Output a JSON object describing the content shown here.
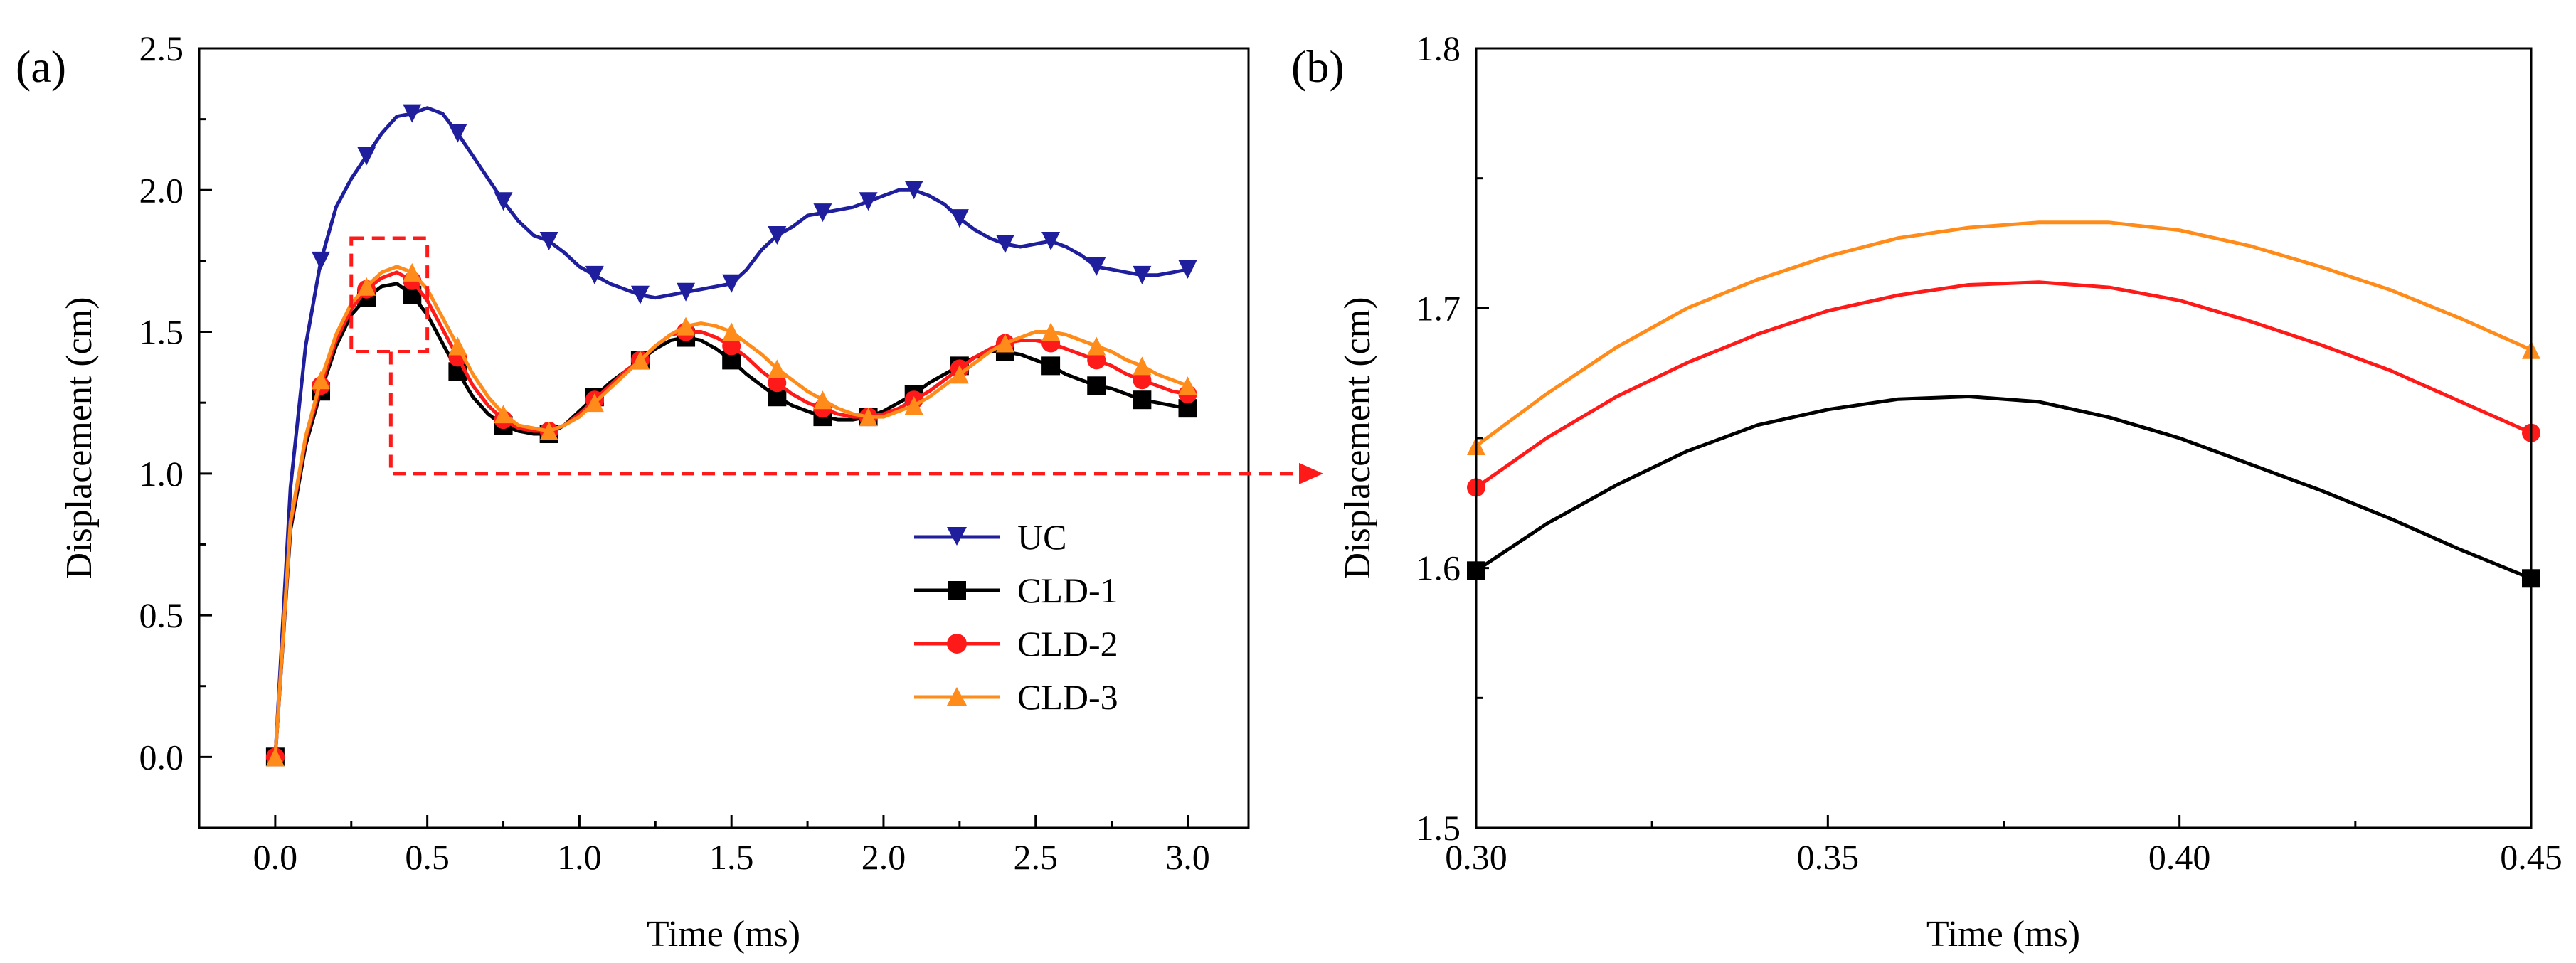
{
  "chart_data": [
    {
      "panel": "(a)",
      "type": "line",
      "title": "",
      "xlabel": "Time (ms)",
      "ylabel": "Displacement (cm)",
      "xlim": [
        -0.25,
        3.2
      ],
      "ylim": [
        -0.25,
        2.5
      ],
      "xticks": [
        0.0,
        0.5,
        1.0,
        1.5,
        2.0,
        2.5,
        3.0
      ],
      "xtick_labels": [
        "0.0",
        "0.5",
        "1.0",
        "1.5",
        "2.0",
        "2.5",
        "3.0"
      ],
      "yticks": [
        0.0,
        0.5,
        1.0,
        1.5,
        2.0,
        2.5
      ],
      "ytick_labels": [
        "0.0",
        "0.5",
        "1.0",
        "1.5",
        "2.0",
        "2.5"
      ],
      "grid": false,
      "legend_position": "bottom-right",
      "series": [
        {
          "name": "UC",
          "color": "#1f1f9e",
          "marker": "triangle-down",
          "x": [
            0.0,
            0.05,
            0.1,
            0.15,
            0.2,
            0.25,
            0.3,
            0.35,
            0.4,
            0.45,
            0.5,
            0.55,
            0.6,
            0.65,
            0.7,
            0.75,
            0.8,
            0.85,
            0.9,
            0.95,
            1.0,
            1.05,
            1.1,
            1.15,
            1.2,
            1.25,
            1.3,
            1.35,
            1.4,
            1.45,
            1.5,
            1.55,
            1.6,
            1.65,
            1.7,
            1.75,
            1.8,
            1.85,
            1.9,
            1.95,
            2.0,
            2.05,
            2.1,
            2.15,
            2.2,
            2.25,
            2.3,
            2.35,
            2.4,
            2.45,
            2.5,
            2.55,
            2.6,
            2.65,
            2.7,
            2.75,
            2.8,
            2.85,
            2.9,
            2.95,
            3.0
          ],
          "y": [
            0.0,
            0.95,
            1.45,
            1.75,
            1.94,
            2.04,
            2.12,
            2.2,
            2.26,
            2.27,
            2.29,
            2.27,
            2.2,
            2.12,
            2.04,
            1.96,
            1.89,
            1.84,
            1.82,
            1.78,
            1.73,
            1.7,
            1.67,
            1.65,
            1.63,
            1.62,
            1.63,
            1.64,
            1.65,
            1.66,
            1.67,
            1.72,
            1.79,
            1.84,
            1.87,
            1.91,
            1.92,
            1.93,
            1.94,
            1.96,
            1.98,
            2.0,
            2.0,
            1.98,
            1.95,
            1.9,
            1.86,
            1.83,
            1.81,
            1.8,
            1.81,
            1.82,
            1.8,
            1.77,
            1.73,
            1.72,
            1.71,
            1.7,
            1.7,
            1.71,
            1.72
          ],
          "marker_x": [
            0.0,
            0.15,
            0.3,
            0.45,
            0.6,
            0.75,
            0.9,
            1.05,
            1.2,
            1.35,
            1.5,
            1.65,
            1.8,
            1.95,
            2.1,
            2.25,
            2.4,
            2.55,
            2.7,
            2.85,
            3.0
          ]
        },
        {
          "name": "CLD-1",
          "color": "#000000",
          "marker": "square",
          "x": [
            0.0,
            0.05,
            0.1,
            0.15,
            0.2,
            0.25,
            0.3,
            0.35,
            0.4,
            0.45,
            0.5,
            0.55,
            0.6,
            0.65,
            0.7,
            0.75,
            0.8,
            0.85,
            0.9,
            0.95,
            1.0,
            1.05,
            1.1,
            1.15,
            1.2,
            1.25,
            1.3,
            1.35,
            1.4,
            1.45,
            1.5,
            1.55,
            1.6,
            1.65,
            1.7,
            1.75,
            1.8,
            1.85,
            1.9,
            1.95,
            2.0,
            2.05,
            2.1,
            2.15,
            2.2,
            2.25,
            2.3,
            2.35,
            2.4,
            2.45,
            2.5,
            2.55,
            2.6,
            2.65,
            2.7,
            2.75,
            2.8,
            2.85,
            2.9,
            2.95,
            3.0
          ],
          "y": [
            0.0,
            0.8,
            1.1,
            1.29,
            1.45,
            1.56,
            1.62,
            1.66,
            1.67,
            1.63,
            1.56,
            1.46,
            1.36,
            1.27,
            1.21,
            1.17,
            1.15,
            1.14,
            1.14,
            1.17,
            1.22,
            1.27,
            1.32,
            1.36,
            1.4,
            1.44,
            1.47,
            1.48,
            1.47,
            1.44,
            1.4,
            1.35,
            1.31,
            1.27,
            1.24,
            1.22,
            1.2,
            1.19,
            1.19,
            1.2,
            1.22,
            1.25,
            1.28,
            1.32,
            1.35,
            1.38,
            1.41,
            1.43,
            1.43,
            1.42,
            1.4,
            1.38,
            1.35,
            1.33,
            1.31,
            1.3,
            1.28,
            1.26,
            1.25,
            1.24,
            1.23
          ],
          "marker_x": [
            0.0,
            0.15,
            0.3,
            0.45,
            0.6,
            0.75,
            0.9,
            1.05,
            1.2,
            1.35,
            1.5,
            1.65,
            1.8,
            1.95,
            2.1,
            2.25,
            2.4,
            2.55,
            2.7,
            2.85,
            3.0
          ]
        },
        {
          "name": "CLD-2",
          "color": "#ff1a1a",
          "marker": "circle",
          "x": [
            0.0,
            0.05,
            0.1,
            0.15,
            0.2,
            0.25,
            0.3,
            0.35,
            0.4,
            0.45,
            0.5,
            0.55,
            0.6,
            0.65,
            0.7,
            0.75,
            0.8,
            0.85,
            0.9,
            0.95,
            1.0,
            1.05,
            1.1,
            1.15,
            1.2,
            1.25,
            1.3,
            1.35,
            1.4,
            1.45,
            1.5,
            1.55,
            1.6,
            1.65,
            1.7,
            1.75,
            1.8,
            1.85,
            1.9,
            1.95,
            2.0,
            2.05,
            2.1,
            2.15,
            2.2,
            2.25,
            2.3,
            2.35,
            2.4,
            2.45,
            2.5,
            2.55,
            2.6,
            2.65,
            2.7,
            2.75,
            2.8,
            2.85,
            2.9,
            2.95,
            3.0
          ],
          "y": [
            0.0,
            0.82,
            1.12,
            1.31,
            1.47,
            1.58,
            1.65,
            1.69,
            1.71,
            1.68,
            1.61,
            1.51,
            1.41,
            1.31,
            1.24,
            1.19,
            1.16,
            1.15,
            1.15,
            1.17,
            1.21,
            1.26,
            1.31,
            1.36,
            1.4,
            1.45,
            1.49,
            1.5,
            1.5,
            1.48,
            1.45,
            1.41,
            1.36,
            1.32,
            1.28,
            1.25,
            1.23,
            1.21,
            1.2,
            1.2,
            1.21,
            1.23,
            1.26,
            1.29,
            1.33,
            1.37,
            1.41,
            1.44,
            1.46,
            1.47,
            1.47,
            1.46,
            1.44,
            1.42,
            1.4,
            1.38,
            1.35,
            1.33,
            1.31,
            1.29,
            1.28
          ],
          "marker_x": [
            0.0,
            0.15,
            0.3,
            0.45,
            0.6,
            0.75,
            0.9,
            1.05,
            1.2,
            1.35,
            1.5,
            1.65,
            1.8,
            1.95,
            2.1,
            2.25,
            2.4,
            2.55,
            2.7,
            2.85,
            3.0
          ]
        },
        {
          "name": "CLD-3",
          "color": "#ff8c1a",
          "marker": "triangle-up",
          "x": [
            0.0,
            0.05,
            0.1,
            0.15,
            0.2,
            0.25,
            0.3,
            0.35,
            0.4,
            0.45,
            0.5,
            0.55,
            0.6,
            0.65,
            0.7,
            0.75,
            0.8,
            0.85,
            0.9,
            0.95,
            1.0,
            1.05,
            1.1,
            1.15,
            1.2,
            1.25,
            1.3,
            1.35,
            1.4,
            1.45,
            1.5,
            1.55,
            1.6,
            1.65,
            1.7,
            1.75,
            1.8,
            1.85,
            1.9,
            1.95,
            2.0,
            2.05,
            2.1,
            2.15,
            2.2,
            2.25,
            2.3,
            2.35,
            2.4,
            2.45,
            2.5,
            2.55,
            2.6,
            2.65,
            2.7,
            2.75,
            2.8,
            2.85,
            2.9,
            2.95,
            3.0
          ],
          "y": [
            0.0,
            0.83,
            1.13,
            1.33,
            1.49,
            1.6,
            1.66,
            1.71,
            1.73,
            1.71,
            1.65,
            1.55,
            1.45,
            1.35,
            1.27,
            1.21,
            1.17,
            1.16,
            1.15,
            1.17,
            1.2,
            1.25,
            1.3,
            1.35,
            1.4,
            1.45,
            1.49,
            1.52,
            1.53,
            1.52,
            1.5,
            1.46,
            1.42,
            1.37,
            1.33,
            1.29,
            1.26,
            1.23,
            1.21,
            1.2,
            1.2,
            1.22,
            1.24,
            1.27,
            1.31,
            1.35,
            1.39,
            1.43,
            1.46,
            1.48,
            1.5,
            1.5,
            1.49,
            1.47,
            1.45,
            1.43,
            1.4,
            1.38,
            1.35,
            1.33,
            1.31
          ],
          "marker_x": [
            0.0,
            0.15,
            0.3,
            0.45,
            0.6,
            0.75,
            0.9,
            1.05,
            1.2,
            1.35,
            1.5,
            1.65,
            1.8,
            1.95,
            2.1,
            2.25,
            2.4,
            2.55,
            2.7,
            2.85,
            3.0
          ]
        }
      ],
      "annotations": [
        {
          "type": "dashed-box",
          "x_range": [
            0.25,
            0.5
          ],
          "y_range": [
            1.43,
            1.83
          ],
          "color": "#ff1a1a"
        },
        {
          "type": "dashed-arrow",
          "from_x": 0.38,
          "from_y": 1.43,
          "via_y": 1.0,
          "to_panel": "(b)",
          "color": "#ff1a1a"
        }
      ]
    },
    {
      "panel": "(b)",
      "type": "line",
      "title": "",
      "xlabel": "Time (ms)",
      "ylabel": "Displacement (cm)",
      "xlim": [
        0.3,
        0.45
      ],
      "ylim": [
        1.5,
        1.8
      ],
      "xticks": [
        0.3,
        0.35,
        0.4,
        0.45
      ],
      "xtick_labels": [
        "0.30",
        "0.35",
        "0.40",
        "0.45"
      ],
      "yticks": [
        1.5,
        1.6,
        1.7,
        1.8
      ],
      "ytick_labels": [
        "1.5",
        "1.6",
        "1.7",
        "1.8"
      ],
      "grid": false,
      "legend_position": "none",
      "series": [
        {
          "name": "CLD-1",
          "color": "#000000",
          "marker": "square",
          "x": [
            0.3,
            0.31,
            0.32,
            0.33,
            0.34,
            0.35,
            0.36,
            0.37,
            0.38,
            0.39,
            0.4,
            0.41,
            0.42,
            0.43,
            0.44,
            0.45
          ],
          "y": [
            1.599,
            1.617,
            1.632,
            1.645,
            1.655,
            1.661,
            1.665,
            1.666,
            1.664,
            1.658,
            1.65,
            1.64,
            1.63,
            1.619,
            1.607,
            1.596
          ],
          "marker_x": [
            0.3,
            0.45
          ]
        },
        {
          "name": "CLD-2",
          "color": "#ff1a1a",
          "marker": "circle",
          "x": [
            0.3,
            0.31,
            0.32,
            0.33,
            0.34,
            0.35,
            0.36,
            0.37,
            0.38,
            0.39,
            0.4,
            0.41,
            0.42,
            0.43,
            0.44,
            0.45
          ],
          "y": [
            1.631,
            1.65,
            1.666,
            1.679,
            1.69,
            1.699,
            1.705,
            1.709,
            1.71,
            1.708,
            1.703,
            1.695,
            1.686,
            1.676,
            1.664,
            1.652
          ],
          "marker_x": [
            0.3,
            0.45
          ]
        },
        {
          "name": "CLD-3",
          "color": "#ff8c1a",
          "marker": "triangle-up",
          "x": [
            0.3,
            0.31,
            0.32,
            0.33,
            0.34,
            0.35,
            0.36,
            0.37,
            0.38,
            0.39,
            0.4,
            0.41,
            0.42,
            0.43,
            0.44,
            0.45
          ],
          "y": [
            1.647,
            1.667,
            1.685,
            1.7,
            1.711,
            1.72,
            1.727,
            1.731,
            1.733,
            1.733,
            1.73,
            1.724,
            1.716,
            1.707,
            1.696,
            1.684
          ],
          "marker_x": [
            0.3,
            0.45
          ]
        }
      ]
    }
  ]
}
